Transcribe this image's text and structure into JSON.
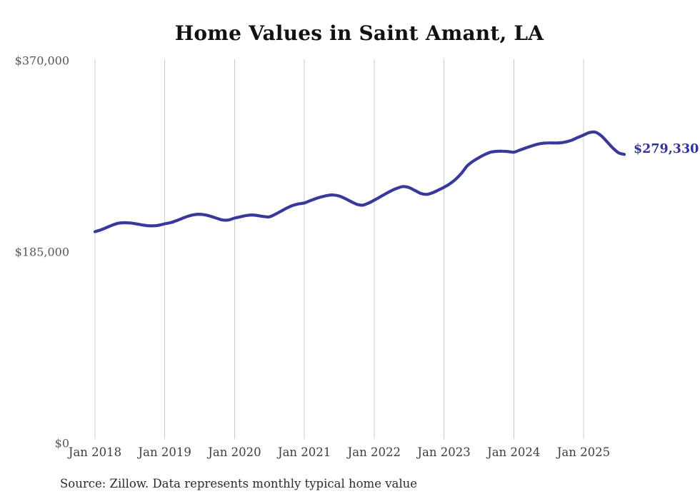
{
  "colors": {
    "line": "#39399B",
    "end_label": "#32329B",
    "gridline": "#CBCBCB",
    "title_text": "#111111",
    "y_tick_text": "#565656",
    "x_tick_text": "#3E3E3E",
    "source_text": "#2B2B2B",
    "background": "#FFFFFF"
  },
  "chart_data": {
    "type": "line",
    "title": "Home Values in Saint Amant, LA",
    "source_note": "Source: Zillow. Data represents monthly typical home value",
    "x_range": {
      "start": "Jan 2018",
      "end": "Aug 2025",
      "interval": "monthly"
    },
    "x_tick_labels": [
      "Jan 2018",
      "Jan 2019",
      "Jan 2020",
      "Jan 2021",
      "Jan 2022",
      "Jan 2023",
      "Jan 2024",
      "Jan 2025"
    ],
    "ylim": [
      0,
      370000
    ],
    "y_ticks": [
      {
        "label": "$370,000",
        "value": 370000
      },
      {
        "label": "$185,000",
        "value": 185000
      },
      {
        "label": "$0",
        "value": 0
      }
    ],
    "grid": "vertical",
    "legend": "none",
    "series": [
      {
        "name": "Typical home value (USD)",
        "values": [
          204700,
          206400,
          208700,
          211000,
          212800,
          213300,
          213100,
          212300,
          211300,
          210500,
          210300,
          210900,
          212300,
          213400,
          215300,
          217500,
          219600,
          221000,
          221500,
          220800,
          219300,
          217500,
          215900,
          216000,
          217800,
          219000,
          220300,
          220800,
          220200,
          219300,
          219000,
          221500,
          224500,
          227500,
          230100,
          231500,
          232400,
          234600,
          236700,
          238400,
          239700,
          240100,
          239100,
          236700,
          233800,
          231200,
          230300,
          232200,
          235100,
          238200,
          241400,
          244400,
          246800,
          248300,
          247300,
          244500,
          241700,
          240700,
          242200,
          244800,
          247600,
          250900,
          255300,
          261100,
          268300,
          272800,
          276200,
          279200,
          281500,
          282300,
          282500,
          282100,
          281500,
          283500,
          285500,
          287400,
          289100,
          290100,
          290500,
          290400,
          290600,
          291500,
          293200,
          295700,
          298100,
          300500,
          300900,
          297600,
          291800,
          285800,
          281000,
          279330
        ]
      }
    ],
    "last_point": {
      "label": "$279,330",
      "value": 279330
    }
  }
}
